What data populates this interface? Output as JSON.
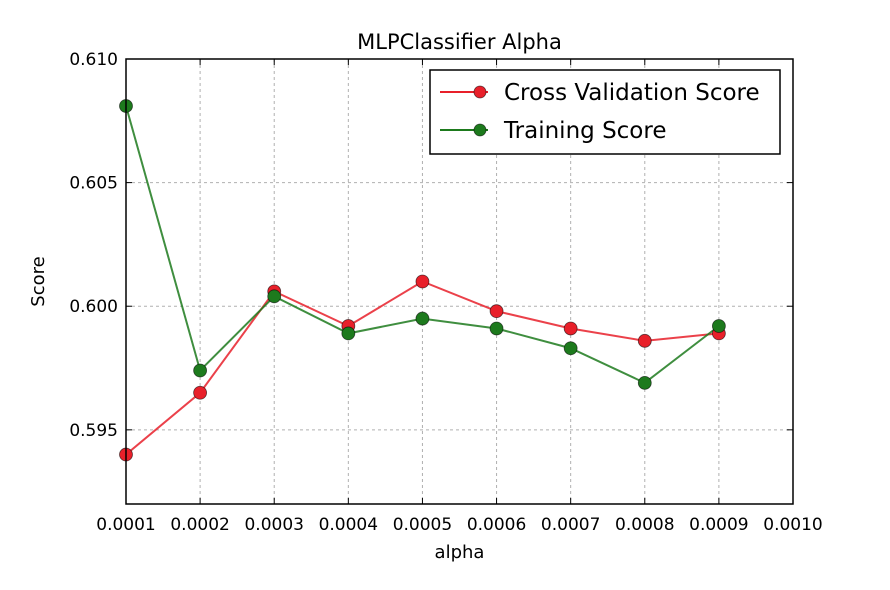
{
  "chart_data": {
    "type": "line",
    "title": "MLPClassifier Alpha",
    "xlabel": "alpha",
    "ylabel": "Score",
    "xlim": [
      0.0001,
      0.001
    ],
    "ylim": [
      0.592,
      0.61
    ],
    "x_ticks": [
      "0.0001",
      "0.0002",
      "0.0003",
      "0.0004",
      "0.0005",
      "0.0006",
      "0.0007",
      "0.0008",
      "0.0009",
      "0.0010"
    ],
    "y_ticks": [
      "0.595",
      "0.600",
      "0.605",
      "0.610"
    ],
    "x": [
      0.0001,
      0.0002,
      0.0003,
      0.0004,
      0.0005,
      0.0006,
      0.0007,
      0.0008,
      0.0009
    ],
    "grid": true,
    "legend_position": "top-right",
    "series": [
      {
        "name": "Cross Validation Score",
        "color": "#e8202a",
        "values": [
          0.594,
          0.5965,
          0.6006,
          0.5992,
          0.601,
          0.5998,
          0.5991,
          0.5986,
          0.5989
        ]
      },
      {
        "name": "Training Score",
        "color": "#1d7a1d",
        "values": [
          0.6081,
          0.5974,
          0.6004,
          0.5989,
          0.5995,
          0.5991,
          0.5983,
          0.5969,
          0.5992
        ]
      }
    ]
  }
}
